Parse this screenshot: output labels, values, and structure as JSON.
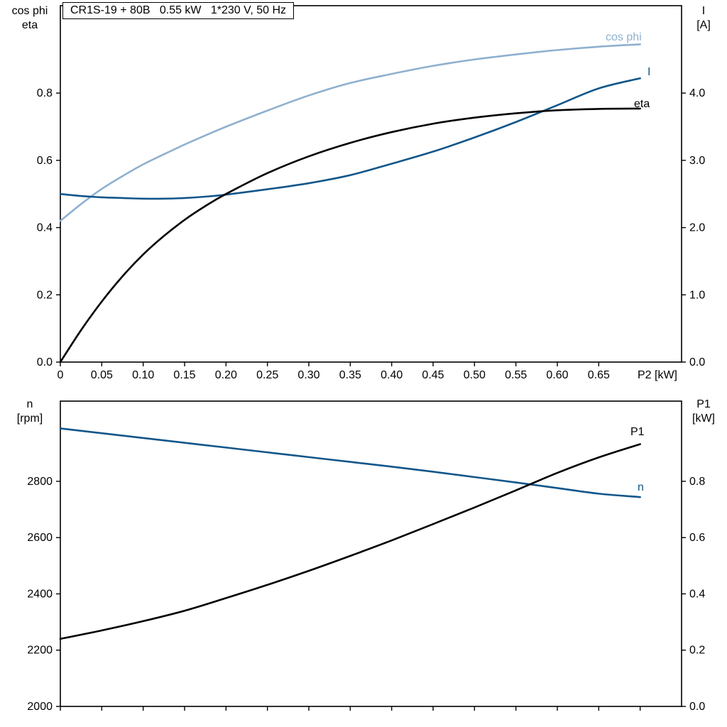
{
  "title_box": {
    "text": "CR1S-19 + 80B   0.55 kW   1*230 V, 50 Hz"
  },
  "colors": {
    "light_blue": "#8fb0cf",
    "dark_blue": "#11568a",
    "black": "#000000",
    "frame": "#000000"
  },
  "chart_data": [
    {
      "type": "line",
      "title": "CR1S-19 + 80B   0.55 kW   1*230 V, 50 Hz",
      "grid": false,
      "legend_position": "inline-labels",
      "x": {
        "min": 0,
        "max": 0.75,
        "ticks": [
          0,
          0.05,
          0.1,
          0.15,
          0.2,
          0.25,
          0.3,
          0.35,
          0.4,
          0.45,
          0.5,
          0.55,
          0.6,
          0.65
        ],
        "tick_labels": [
          "0",
          "0.05",
          "0.10",
          "0.15",
          "0.20",
          "0.25",
          "0.30",
          "0.35",
          "0.40",
          "0.45",
          "0.50",
          "0.55",
          "0.60",
          "0.65"
        ],
        "unit_label": "P2 [kW]"
      },
      "y_left": {
        "label_line1": "cos phi",
        "label_line2": "eta",
        "min": 0,
        "max": 1.06,
        "ticks": [
          0.0,
          0.2,
          0.4,
          0.6,
          0.8
        ],
        "tick_labels": [
          "0.0",
          "0.2",
          "0.4",
          "0.6",
          "0.8"
        ]
      },
      "y_right": {
        "label_line1": "I",
        "label_line2": "[A]",
        "min": 0,
        "max": 5.3,
        "ticks": [
          0.0,
          1.0,
          2.0,
          3.0,
          4.0
        ],
        "tick_labels": [
          "0.0",
          "1.0",
          "2.0",
          "3.0",
          "4.0"
        ]
      },
      "series": [
        {
          "name": "cos phi",
          "axis": "left",
          "color_key": "light_blue",
          "x": [
            0,
            0.025,
            0.05,
            0.075,
            0.1,
            0.125,
            0.15,
            0.175,
            0.2,
            0.25,
            0.3,
            0.35,
            0.4,
            0.45,
            0.5,
            0.55,
            0.6,
            0.65,
            0.7
          ],
          "y": [
            0.42,
            0.47,
            0.515,
            0.553,
            0.588,
            0.618,
            0.647,
            0.674,
            0.7,
            0.748,
            0.793,
            0.83,
            0.857,
            0.881,
            0.9,
            0.915,
            0.928,
            0.938,
            0.945
          ]
        },
        {
          "name": "I",
          "axis": "right",
          "color_key": "dark_blue",
          "x": [
            0,
            0.025,
            0.05,
            0.075,
            0.1,
            0.125,
            0.15,
            0.175,
            0.2,
            0.25,
            0.3,
            0.35,
            0.4,
            0.45,
            0.5,
            0.55,
            0.6,
            0.65,
            0.7
          ],
          "y": [
            2.5,
            2.47,
            2.45,
            2.44,
            2.43,
            2.43,
            2.44,
            2.46,
            2.49,
            2.57,
            2.66,
            2.78,
            2.95,
            3.13,
            3.34,
            3.57,
            3.82,
            4.07,
            4.22
          ]
        },
        {
          "name": "eta",
          "axis": "left",
          "color_key": "black",
          "x": [
            0,
            0.025,
            0.05,
            0.075,
            0.1,
            0.125,
            0.15,
            0.175,
            0.2,
            0.25,
            0.3,
            0.35,
            0.4,
            0.45,
            0.5,
            0.55,
            0.6,
            0.65,
            0.7
          ],
          "y": [
            0.0,
            0.095,
            0.18,
            0.255,
            0.32,
            0.375,
            0.423,
            0.464,
            0.5,
            0.562,
            0.612,
            0.652,
            0.684,
            0.709,
            0.727,
            0.74,
            0.749,
            0.753,
            0.754
          ]
        }
      ]
    },
    {
      "type": "line",
      "title": "",
      "grid": false,
      "legend_position": "inline-labels",
      "x": {
        "min": 0,
        "max": 0.75,
        "ticks": [
          0,
          0.05,
          0.1,
          0.15,
          0.2,
          0.25,
          0.3,
          0.35,
          0.4,
          0.45,
          0.5,
          0.55,
          0.6,
          0.65,
          0.7
        ],
        "tick_labels": [],
        "unit_label": ""
      },
      "y_left": {
        "label_line1": "n",
        "label_line2": "[rpm]",
        "min": 2000,
        "max": 3085,
        "ticks": [
          2000,
          2200,
          2400,
          2600,
          2800
        ],
        "tick_labels": [
          "2000",
          "2200",
          "2400",
          "2600",
          "2800"
        ]
      },
      "y_right": {
        "label_line1": "P1",
        "label_line2": "[kW]",
        "min": 0,
        "max": 1.085,
        "ticks": [
          0.0,
          0.2,
          0.4,
          0.6,
          0.8
        ],
        "tick_labels": [
          "0.0",
          "0.2",
          "0.4",
          "0.6",
          "0.8"
        ]
      },
      "series": [
        {
          "name": "n",
          "axis": "left",
          "color_key": "dark_blue",
          "x": [
            0,
            0.05,
            0.1,
            0.15,
            0.2,
            0.25,
            0.3,
            0.35,
            0.4,
            0.45,
            0.5,
            0.55,
            0.6,
            0.65,
            0.7
          ],
          "y": [
            2988,
            2971,
            2954,
            2937,
            2920,
            2903,
            2886,
            2869,
            2852,
            2834,
            2815,
            2796,
            2776,
            2756,
            2744
          ]
        },
        {
          "name": "P1",
          "axis": "right",
          "color_key": "black",
          "x": [
            0,
            0.05,
            0.1,
            0.15,
            0.2,
            0.25,
            0.3,
            0.35,
            0.4,
            0.45,
            0.5,
            0.55,
            0.6,
            0.65,
            0.7
          ],
          "y": [
            0.24,
            0.27,
            0.303,
            0.34,
            0.385,
            0.432,
            0.482,
            0.535,
            0.59,
            0.648,
            0.707,
            0.768,
            0.83,
            0.885,
            0.932
          ]
        }
      ]
    }
  ]
}
